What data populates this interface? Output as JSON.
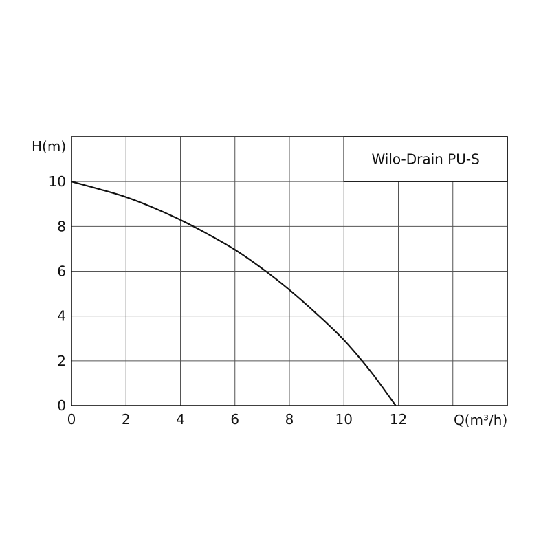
{
  "chart_data": {
    "type": "line",
    "title": "Wilo-Drain PU-S",
    "xlabel": "Q(m³/h)",
    "ylabel": "H(m)",
    "xlim": [
      0,
      16
    ],
    "ylim": [
      0,
      12
    ],
    "grid": true,
    "x_ticks": [
      "0",
      "2",
      "4",
      "6",
      "8",
      "10",
      "12"
    ],
    "y_ticks": [
      "0",
      "2",
      "4",
      "6",
      "8",
      "10"
    ],
    "series": [
      {
        "x": [
          0,
          1,
          2,
          3,
          4,
          5,
          6,
          7,
          8,
          9,
          10,
          11,
          11.9
        ],
        "y": [
          10,
          9.67,
          9.31,
          8.84,
          8.29,
          7.66,
          6.96,
          6.12,
          5.17,
          4.1,
          2.93,
          1.5,
          0
        ],
        "color": "#111111"
      }
    ]
  }
}
